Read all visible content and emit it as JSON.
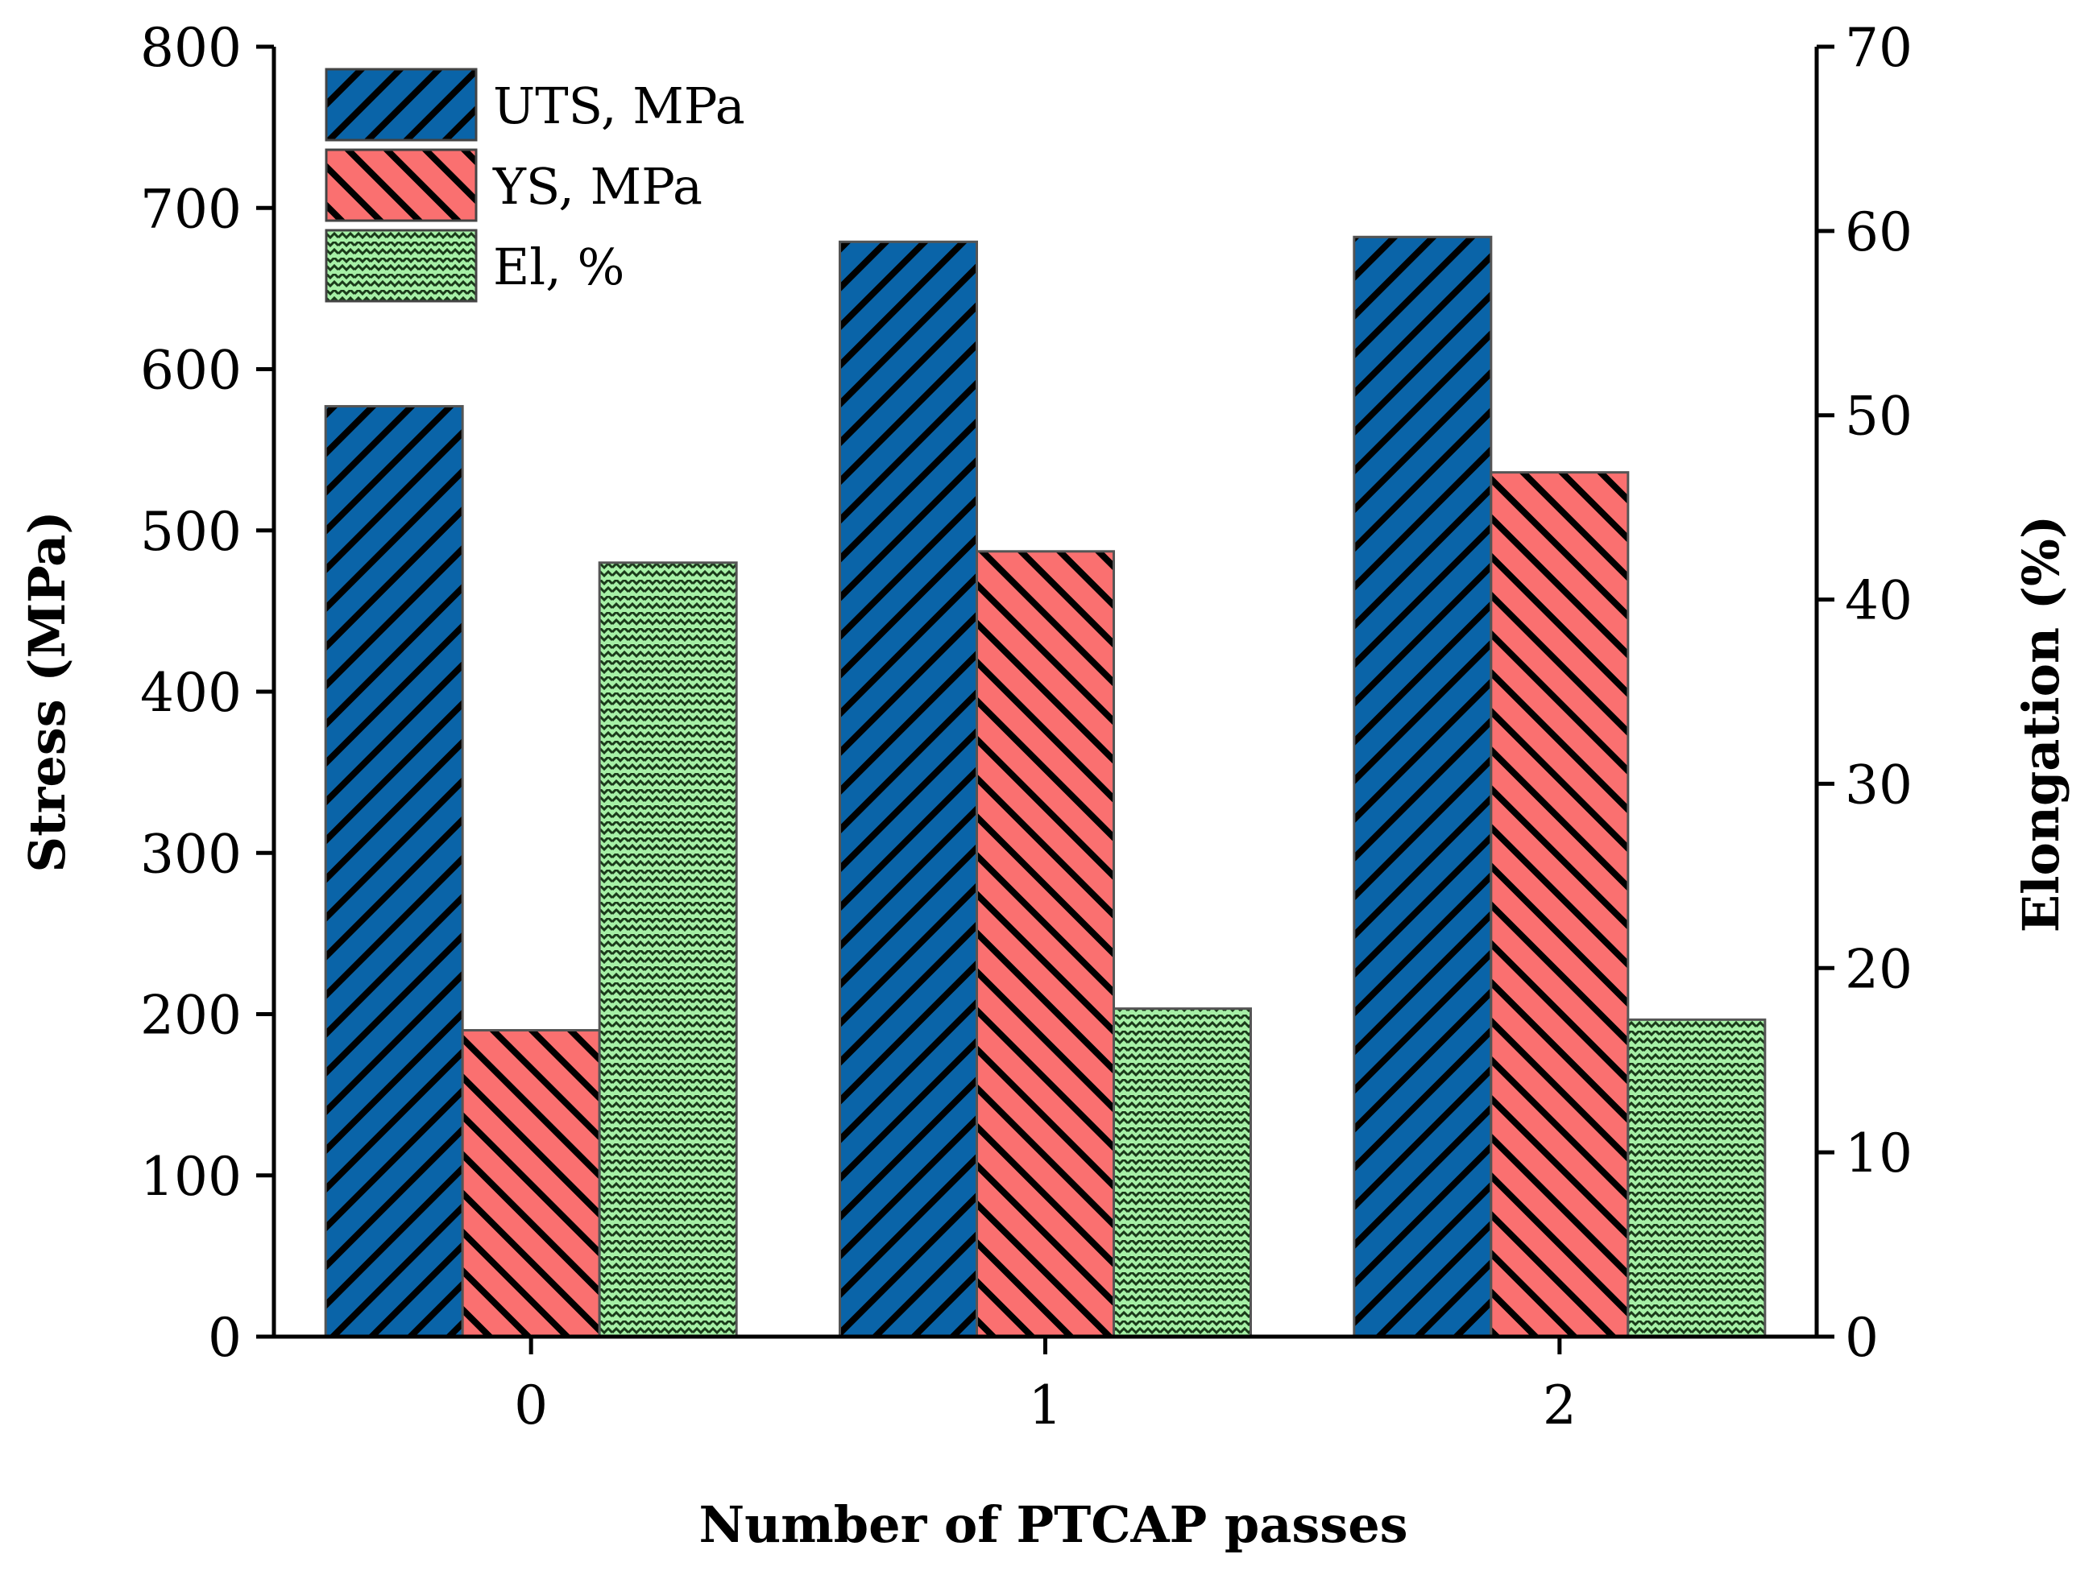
{
  "chart_data": {
    "type": "bar",
    "title": "",
    "xlabel": "Number of PTCAP passes",
    "ylabel": "Stress (MPa)",
    "y2label": "Elongation (%)",
    "categories": [
      "0",
      "1",
      "2"
    ],
    "ylim": [
      0,
      800
    ],
    "y2lim": [
      0,
      70
    ],
    "yticks": [
      "0",
      "100",
      "200",
      "300",
      "400",
      "500",
      "600",
      "700",
      "800"
    ],
    "y2ticks": [
      "0",
      "10",
      "20",
      "30",
      "40",
      "50",
      "60",
      "70"
    ],
    "legend_position": "top-left",
    "series": [
      {
        "name": "UTS, MPa",
        "axis": "left",
        "values": [
          577,
          679,
          682
        ],
        "color": "#0a64a8",
        "pattern": "hatch-forward"
      },
      {
        "name": "YS, MPa",
        "axis": "left",
        "values": [
          190,
          487,
          536
        ],
        "color": "#fa7070",
        "pattern": "hatch-back"
      },
      {
        "name": "El, %",
        "axis": "right",
        "values": [
          42.0,
          17.8,
          17.2
        ],
        "color": "#a6f0a6",
        "pattern": "zigzag"
      }
    ]
  }
}
